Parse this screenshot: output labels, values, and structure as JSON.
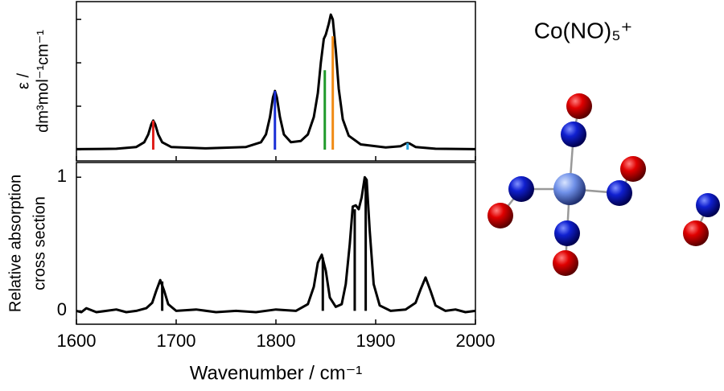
{
  "chart_data": [
    {
      "type": "line",
      "ylabel": [
        "ε /",
        "dm³mol⁻¹cm⁻¹"
      ],
      "xlim": [
        1600,
        2000
      ],
      "xticks": [
        1600,
        1700,
        1800,
        1900,
        2000
      ],
      "xtick_labels": false,
      "ylim": [
        -0.26,
        3.41
      ],
      "yticks": [
        0,
        1,
        2,
        3
      ],
      "ytick_labels": false,
      "series": [
        {
          "color": "#000000",
          "x": [
            1600,
            1640,
            1660,
            1668,
            1672,
            1675,
            1677,
            1679,
            1682,
            1686,
            1695,
            1730,
            1770,
            1785,
            1790,
            1794,
            1797,
            1799,
            1801,
            1804,
            1808,
            1815,
            1825,
            1832,
            1838,
            1842,
            1845,
            1848,
            1850,
            1853,
            1855,
            1857,
            1860,
            1863,
            1867,
            1873,
            1885,
            1910,
            1925,
            1930,
            1932,
            1934,
            1940,
            1960,
            2000
          ],
          "values": [
            0.01,
            0.02,
            0.06,
            0.17,
            0.35,
            0.58,
            0.67,
            0.58,
            0.35,
            0.17,
            0.06,
            0.03,
            0.06,
            0.17,
            0.35,
            0.75,
            1.2,
            1.35,
            1.2,
            0.75,
            0.35,
            0.17,
            0.2,
            0.35,
            0.75,
            1.3,
            2.0,
            2.55,
            2.65,
            2.9,
            3.11,
            3.0,
            2.3,
            1.4,
            0.7,
            0.32,
            0.12,
            0.05,
            0.08,
            0.14,
            0.15,
            0.14,
            0.06,
            0.02,
            0.01
          ]
        }
      ],
      "sticks": {
        "x": [
          1677,
          1799,
          1849,
          1857,
          1932
        ],
        "values": [
          0.67,
          1.35,
          1.83,
          2.61,
          0.15
        ],
        "colors": [
          "#e0201b",
          "#1a2fd6",
          "#1f9a2a",
          "#f08a14",
          "#2aa6e0"
        ]
      }
    },
    {
      "type": "line",
      "ylabel": [
        "Relative absorption",
        "cross section"
      ],
      "xlabel": "Wavenumber / cm⁻¹",
      "xlim": [
        1600,
        2000
      ],
      "xticks": [
        1600,
        1700,
        1800,
        1900,
        2000
      ],
      "xtick_labels": true,
      "ylim": [
        -0.1,
        1.11
      ],
      "yticks": [
        0,
        1
      ],
      "ytick_labels": true,
      "series": [
        {
          "color": "#000000",
          "x": [
            1600,
            1605,
            1610,
            1620,
            1630,
            1640,
            1650,
            1660,
            1670,
            1676,
            1680,
            1684,
            1688,
            1692,
            1700,
            1720,
            1740,
            1760,
            1780,
            1800,
            1820,
            1832,
            1838,
            1842,
            1846,
            1850,
            1854,
            1860,
            1866,
            1870,
            1874,
            1877,
            1880,
            1883,
            1886,
            1889,
            1891,
            1894,
            1898,
            1904,
            1915,
            1930,
            1940,
            1945,
            1950,
            1955,
            1960,
            1970,
            1980,
            1990,
            2000
          ],
          "values": [
            0.0,
            -0.01,
            0.02,
            -0.01,
            0.0,
            0.01,
            -0.01,
            0.0,
            0.02,
            0.06,
            0.15,
            0.23,
            0.15,
            0.05,
            0.0,
            0.01,
            -0.01,
            0.0,
            -0.01,
            0.01,
            0.0,
            0.05,
            0.18,
            0.36,
            0.42,
            0.3,
            0.1,
            0.03,
            0.05,
            0.2,
            0.5,
            0.78,
            0.79,
            0.76,
            0.85,
            1.0,
            0.98,
            0.6,
            0.2,
            0.04,
            0.0,
            0.01,
            0.06,
            0.16,
            0.25,
            0.15,
            0.04,
            0.0,
            0.01,
            -0.01,
            0.0
          ]
        }
      ],
      "sticks": {
        "x": [
          1686,
          1847,
          1879,
          1890
        ],
        "values": [
          0.22,
          0.4,
          0.76,
          0.97
        ],
        "colors": [
          "#000000",
          "#000000",
          "#000000",
          "#000000"
        ]
      }
    }
  ],
  "molecule": {
    "label": "Co(NO)₅⁺"
  }
}
